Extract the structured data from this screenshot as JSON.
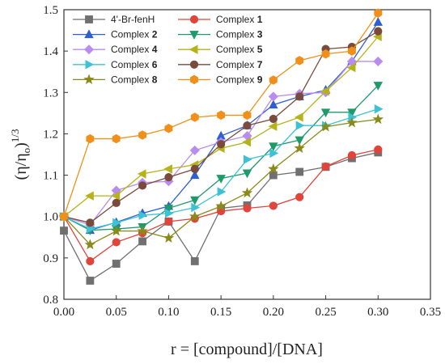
{
  "chart_data": {
    "type": "line",
    "xlabel": "r = [compound]/[DNA]",
    "ylabel": "(η/η",
    "ylabel_sub": "o",
    "ylabel_paren": ")",
    "ylabel_sup": "1/3",
    "xlim": [
      0,
      0.35
    ],
    "ylim": [
      0.8,
      1.5
    ],
    "xticks": [
      "0.00",
      "0.05",
      "0.10",
      "0.15",
      "0.20",
      "0.25",
      "0.30",
      "0.35"
    ],
    "yticks": [
      "0.8",
      "0.9",
      "1.0",
      "1.1",
      "1.2",
      "1.3",
      "1.4",
      "1.5"
    ],
    "grid": false,
    "legend_position": "top-left",
    "x": [
      0.0,
      0.025,
      0.05,
      0.075,
      0.1,
      0.125,
      0.15,
      0.175,
      0.2,
      0.225,
      0.25,
      0.275,
      0.3
    ],
    "series": [
      {
        "name": "4'-Br-fenH",
        "name_num": "",
        "color": "#707070",
        "marker": "square",
        "values": [
          0.966,
          0.845,
          0.886,
          0.94,
          0.988,
          0.892,
          1.02,
          1.027,
          1.1,
          1.108,
          1.12,
          1.141,
          1.155
        ]
      },
      {
        "name": "Complex ",
        "name_num": "1",
        "color": "#e0443a",
        "marker": "circle",
        "values": [
          1.0,
          0.892,
          0.938,
          0.96,
          0.988,
          0.995,
          1.013,
          1.02,
          1.026,
          1.047,
          1.121,
          1.148,
          1.162
        ]
      },
      {
        "name": "Complex ",
        "name_num": "2",
        "color": "#2f5fd0",
        "marker": "triangle-up",
        "values": [
          1.0,
          0.967,
          0.986,
          1.008,
          1.025,
          1.1,
          1.195,
          1.22,
          1.27,
          1.29,
          1.306,
          1.375,
          1.47
        ]
      },
      {
        "name": "Complex ",
        "name_num": "3",
        "color": "#1f9a6a",
        "marker": "triangle-down",
        "values": [
          1.0,
          0.967,
          0.97,
          0.975,
          1.02,
          1.04,
          1.092,
          1.105,
          1.17,
          1.185,
          1.252,
          1.252,
          1.317
        ]
      },
      {
        "name": "Complex ",
        "name_num": "4",
        "color": "#b98cf0",
        "marker": "diamond",
        "values": [
          1.0,
          0.98,
          1.063,
          1.082,
          1.085,
          1.16,
          1.18,
          1.195,
          1.29,
          1.297,
          1.3,
          1.375,
          1.375
        ]
      },
      {
        "name": "Complex ",
        "name_num": "5",
        "color": "#b5b21a",
        "marker": "triangle-left",
        "values": [
          1.0,
          1.05,
          1.05,
          1.103,
          1.115,
          1.125,
          1.165,
          1.18,
          1.218,
          1.24,
          1.303,
          1.36,
          1.435
        ]
      },
      {
        "name": "Complex ",
        "name_num": "6",
        "color": "#3cc2d4",
        "marker": "triangle-right",
        "values": [
          1.0,
          0.97,
          0.985,
          1.003,
          1.008,
          1.022,
          1.06,
          1.138,
          1.153,
          1.22,
          1.22,
          1.24,
          1.26
        ]
      },
      {
        "name": "Complex ",
        "name_num": "7",
        "color": "#7a4a3c",
        "marker": "circle",
        "values": [
          1.0,
          0.985,
          1.033,
          1.075,
          1.095,
          1.115,
          1.175,
          1.22,
          1.236,
          1.29,
          1.405,
          1.41,
          1.448
        ]
      },
      {
        "name": "Complex ",
        "name_num": "8",
        "color": "#8a8a1a",
        "marker": "star",
        "values": [
          1.0,
          0.932,
          0.965,
          0.965,
          0.948,
          1.0,
          1.025,
          1.057,
          1.115,
          1.165,
          1.217,
          1.227,
          1.235
        ]
      },
      {
        "name": "Complex ",
        "name_num": "9",
        "color": "#f0901a",
        "marker": "hexagon",
        "values": [
          1.0,
          1.188,
          1.188,
          1.197,
          1.213,
          1.24,
          1.245,
          1.245,
          1.33,
          1.377,
          1.393,
          1.4,
          1.492
        ]
      }
    ]
  }
}
